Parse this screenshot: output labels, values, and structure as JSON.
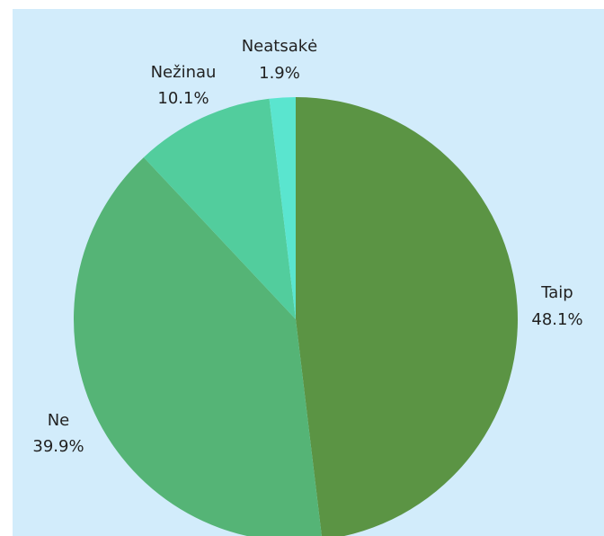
{
  "chart_data": {
    "type": "pie",
    "slices": [
      {
        "name": "Taip",
        "value": 48.1,
        "label": "48.1%",
        "color": "#5b9444"
      },
      {
        "name": "Ne",
        "value": 39.9,
        "label": "39.9%",
        "color": "#55b476"
      },
      {
        "name": "Nežinau",
        "value": 10.1,
        "label": "10.1%",
        "color": "#52cd9d"
      },
      {
        "name": "Neatsakė",
        "value": 1.9,
        "label": "1.9%",
        "color": "#5ae5cf"
      }
    ],
    "start": "12 o'clock",
    "direction": "clockwise",
    "background": "#d2ecfb"
  }
}
